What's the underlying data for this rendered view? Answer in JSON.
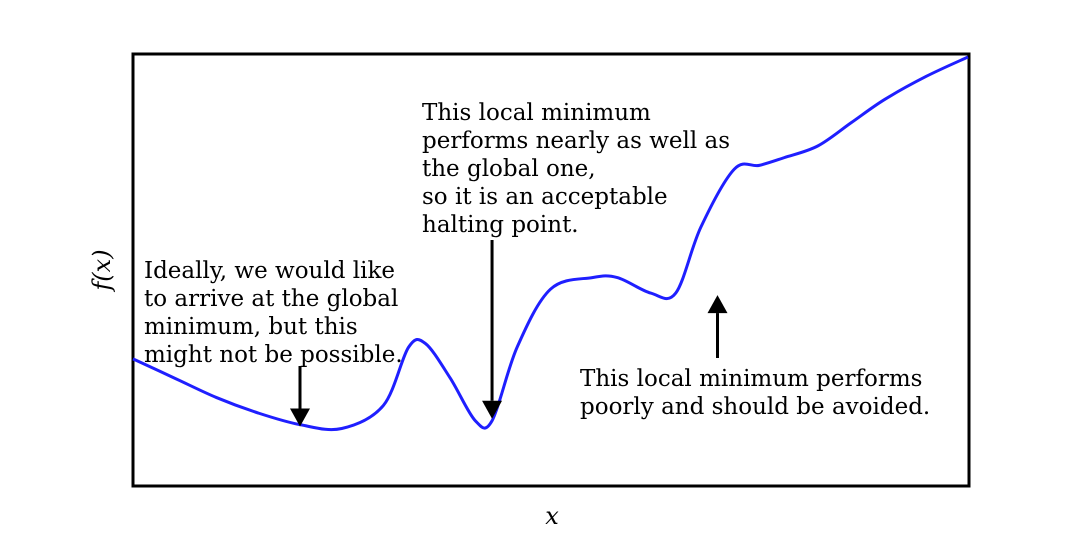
{
  "chart_data": {
    "type": "line",
    "title": "",
    "xlabel": "x",
    "ylabel": "f(x)",
    "grid": false,
    "legend": "none",
    "series": [
      {
        "color": "#1f1fff",
        "x": [
          0,
          0.05,
          0.1,
          0.15,
          0.2,
          0.25,
          0.3,
          0.33,
          0.35,
          0.38,
          0.41,
          0.43,
          0.46,
          0.5,
          0.55,
          0.58,
          0.62,
          0.65,
          0.68,
          0.72,
          0.75,
          0.78,
          0.82,
          0.86,
          0.9,
          0.95,
          1.0
        ],
        "y": [
          0.22,
          0.17,
          0.12,
          0.08,
          0.05,
          0.04,
          0.1,
          0.25,
          0.26,
          0.17,
          0.06,
          0.06,
          0.25,
          0.4,
          0.43,
          0.43,
          0.39,
          0.39,
          0.56,
          0.71,
          0.72,
          0.74,
          0.77,
          0.83,
          0.89,
          0.95,
          1.0
        ]
      }
    ],
    "annotations": [
      {
        "lines": [
          "Ideally, we would like",
          "to arrive at the global",
          "minimum, but this",
          "might not be possible."
        ],
        "point": [
          0.2,
          0.04
        ],
        "arrow": "down"
      },
      {
        "lines": [
          "This local minimum",
          "performs nearly as well as",
          "the global one,",
          "so it is an acceptable",
          "halting point."
        ],
        "point": [
          0.43,
          0.06
        ],
        "arrow": "down"
      },
      {
        "lines": [
          "This local minimum performs",
          "poorly and should be avoided."
        ],
        "point": [
          0.7,
          0.39
        ],
        "arrow": "up"
      }
    ]
  }
}
